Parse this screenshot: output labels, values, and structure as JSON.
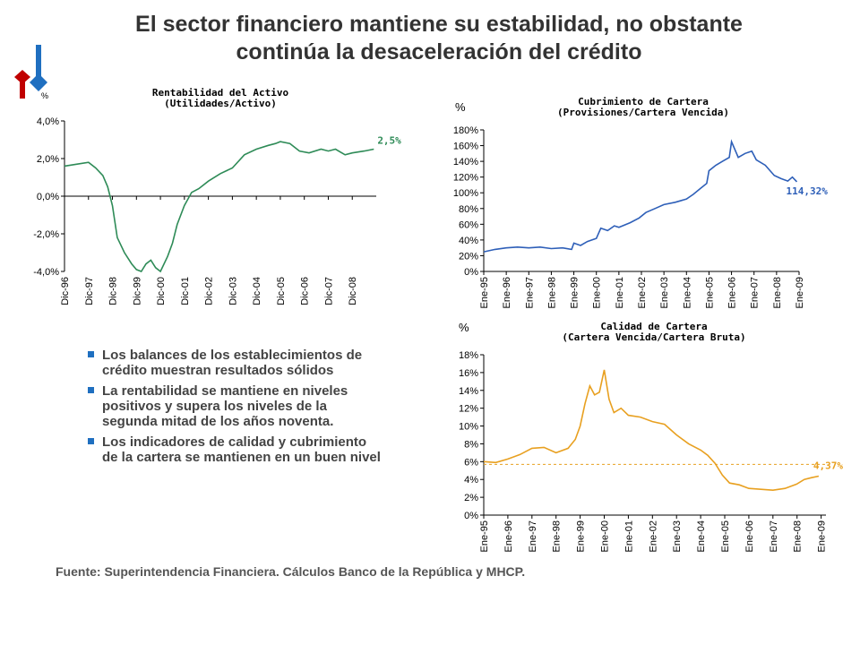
{
  "slide": {
    "title_line1": "El sector financiero mantiene su estabilidad, no obstante",
    "title_line2": "continúa la desaceleración del crédito",
    "source": "Fuente: Superintendencia Financiera. Cálculos Banco de la República y MHCP.",
    "bullets": [
      "Los balances de los establecimientos de crédito muestran resultados sólidos",
      "La rentabilidad se mantiene en niveles positivos y supera los niveles de la segunda mitad de los años noventa.",
      "Los indicadores de calidad y cubrimiento de la cartera se mantienen en un buen nivel"
    ],
    "colors": {
      "accent_red": "#c00000",
      "accent_blue": "#1f6fc0"
    }
  },
  "chart_data": [
    {
      "type": "line",
      "title": "Rentabilidad del Activo",
      "subtitle": "(Utilidades/Activo)",
      "ylabel": "%",
      "ylim": [
        -4.0,
        4.0
      ],
      "yticks": [
        "4,0%",
        "2,0%",
        "0,0%",
        "-2,0%",
        "-4,0%"
      ],
      "categories": [
        "Dic-96",
        "Dic-97",
        "Dic-98",
        "Dic-99",
        "Dic-00",
        "Dic-01",
        "Dic-02",
        "Dic-03",
        "Dic-04",
        "Dic-05",
        "Dic-06",
        "Dic-07",
        "Dic-08"
      ],
      "color": "#2e8b57",
      "end_label": "2,5%",
      "x": [
        1996.0,
        1996.5,
        1997.0,
        1997.3,
        1997.6,
        1997.8,
        1998.0,
        1998.2,
        1998.5,
        1998.8,
        1999.0,
        1999.2,
        1999.4,
        1999.6,
        1999.8,
        2000.0,
        2000.3,
        2000.5,
        2000.7,
        2001.0,
        2001.3,
        2001.6,
        2002.0,
        2002.5,
        2003.0,
        2003.5,
        2004.0,
        2004.5,
        2004.8,
        2005.0,
        2005.4,
        2005.8,
        2006.2,
        2006.7,
        2007.0,
        2007.3,
        2007.7,
        2008.0,
        2008.5,
        2008.9
      ],
      "values": [
        1.6,
        1.7,
        1.8,
        1.5,
        1.1,
        0.5,
        -0.5,
        -2.2,
        -3.0,
        -3.6,
        -3.9,
        -4.0,
        -3.6,
        -3.4,
        -3.8,
        -4.0,
        -3.2,
        -2.5,
        -1.5,
        -0.5,
        0.2,
        0.4,
        0.8,
        1.2,
        1.5,
        2.2,
        2.5,
        2.7,
        2.8,
        2.9,
        2.8,
        2.4,
        2.3,
        2.5,
        2.4,
        2.5,
        2.2,
        2.3,
        2.4,
        2.5
      ]
    },
    {
      "type": "line",
      "title": "Cubrimiento de Cartera",
      "subtitle": "(Provisiones/Cartera Vencida)",
      "ylabel": "%",
      "ylim": [
        0,
        180
      ],
      "yticks": [
        "180%",
        "160%",
        "140%",
        "120%",
        "100%",
        "80%",
        "60%",
        "40%",
        "20%",
        "0%"
      ],
      "categories": [
        "Ene-95",
        "Ene-96",
        "Ene-97",
        "Ene-98",
        "Ene-99",
        "Ene-00",
        "Ene-01",
        "Ene-02",
        "Ene-03",
        "Ene-04",
        "Ene-05",
        "Ene-06",
        "Ene-07",
        "Ene-08",
        "Ene-09"
      ],
      "color": "#2e5fb8",
      "end_label": "114,32%",
      "x": [
        1995.0,
        1995.5,
        1996.0,
        1996.5,
        1997.0,
        1997.5,
        1998.0,
        1998.5,
        1998.9,
        1999.0,
        1999.3,
        1999.6,
        2000.0,
        2000.2,
        2000.5,
        2000.8,
        2001.0,
        2001.5,
        2001.9,
        2002.2,
        2002.6,
        2003.0,
        2003.5,
        2004.0,
        2004.3,
        2004.6,
        2004.9,
        2005.0,
        2005.3,
        2005.6,
        2005.9,
        2006.0,
        2006.3,
        2006.6,
        2006.9,
        2007.1,
        2007.5,
        2007.9,
        2008.2,
        2008.5,
        2008.7,
        2008.9
      ],
      "values": [
        25,
        28,
        30,
        31,
        30,
        31,
        29,
        30,
        28,
        36,
        33,
        38,
        42,
        55,
        52,
        58,
        56,
        62,
        68,
        75,
        80,
        85,
        88,
        92,
        98,
        105,
        112,
        128,
        135,
        140,
        145,
        165,
        145,
        150,
        153,
        142,
        135,
        122,
        118,
        115,
        120,
        114
      ]
    },
    {
      "type": "line",
      "title": "Calidad de Cartera",
      "subtitle": "(Cartera Vencida/Cartera Bruta)",
      "ylabel": "%",
      "ylim": [
        0,
        18
      ],
      "yticks": [
        "18%",
        "16%",
        "14%",
        "12%",
        "10%",
        "8%",
        "6%",
        "4%",
        "2%",
        "0%"
      ],
      "categories": [
        "Ene-95",
        "Ene-96",
        "Ene-97",
        "Ene-98",
        "Ene-99",
        "Ene-00",
        "Ene-01",
        "Ene-02",
        "Ene-03",
        "Ene-04",
        "Ene-05",
        "Ene-06",
        "Ene-07",
        "Ene-08",
        "Ene-09"
      ],
      "color": "#e8a020",
      "end_label": "4,37%",
      "reference_line": 5.7,
      "x": [
        1995.0,
        1995.5,
        1996.0,
        1996.5,
        1997.0,
        1997.5,
        1998.0,
        1998.5,
        1998.8,
        1999.0,
        1999.2,
        1999.4,
        1999.6,
        1999.8,
        2000.0,
        2000.2,
        2000.4,
        2000.7,
        2001.0,
        2001.5,
        2002.0,
        2002.5,
        2003.0,
        2003.5,
        2004.0,
        2004.3,
        2004.6,
        2004.9,
        2005.2,
        2005.6,
        2006.0,
        2006.5,
        2007.0,
        2007.5,
        2008.0,
        2008.3,
        2008.6,
        2008.9
      ],
      "values": [
        6.0,
        5.9,
        6.3,
        6.8,
        7.5,
        7.6,
        7.0,
        7.5,
        8.5,
        10.0,
        12.5,
        14.5,
        13.5,
        13.8,
        16.3,
        13.0,
        11.5,
        12.0,
        11.2,
        11.0,
        10.5,
        10.2,
        9.0,
        8.0,
        7.3,
        6.7,
        5.8,
        4.5,
        3.6,
        3.4,
        3.0,
        2.9,
        2.8,
        3.0,
        3.5,
        4.0,
        4.2,
        4.37
      ]
    }
  ]
}
